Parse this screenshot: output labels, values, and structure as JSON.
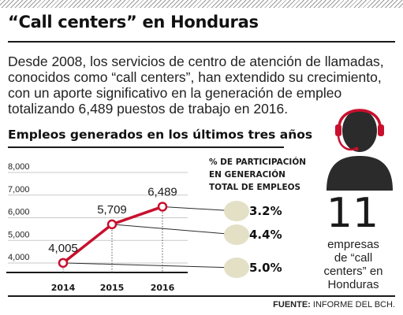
{
  "header": {
    "title": "“Call centers” en Honduras"
  },
  "intro": {
    "lines": [
      "Desde 2008, los servicios de centro de atención de llamadas,",
      "conocidos como “call centers”, han extendido su crecimiento,",
      "con un aporte significativo en la generación de empleo",
      "totalizando 6,489 puestos de trabajo en 2016."
    ]
  },
  "chart_data": {
    "type": "line",
    "title": "Empleos generados en los últimos tres años",
    "xlabel": "",
    "ylabel": "",
    "x": [
      "2014",
      "2015",
      "2016"
    ],
    "y_ticks": [
      4000,
      5000,
      6000,
      7000,
      8000
    ],
    "y_tick_labels": [
      "4,000",
      "5,000",
      "6,000",
      "7,000",
      "8,000"
    ],
    "ylim": [
      3500,
      8500
    ],
    "grid": true,
    "series": [
      {
        "values": [
          4005,
          5709,
          6489
        ],
        "value_labels": [
          "4,005",
          "5,709",
          "6,489"
        ],
        "color": "#c8102e"
      }
    ],
    "participation": {
      "label_lines": [
        "% DE PARTICIPACIÓN",
        "EN GENERACIÓN",
        "TOTAL DE EMPLEOS"
      ],
      "values": [
        "3.2%",
        "4.4%",
        "5.0%"
      ],
      "bubble_color": "#e3e0c6"
    }
  },
  "stat": {
    "count": "11",
    "label_lines": [
      "empresas",
      "de “call",
      "centers” en",
      "Honduras"
    ],
    "icon": "call-center-agent-icon"
  },
  "footer": {
    "source_bold": "FUENTE:",
    "source_text": " INFORME DEL BCH."
  },
  "colors": {
    "accent": "#c8102e",
    "bubble": "#e3e0c6",
    "text": "#1a1a1a"
  }
}
